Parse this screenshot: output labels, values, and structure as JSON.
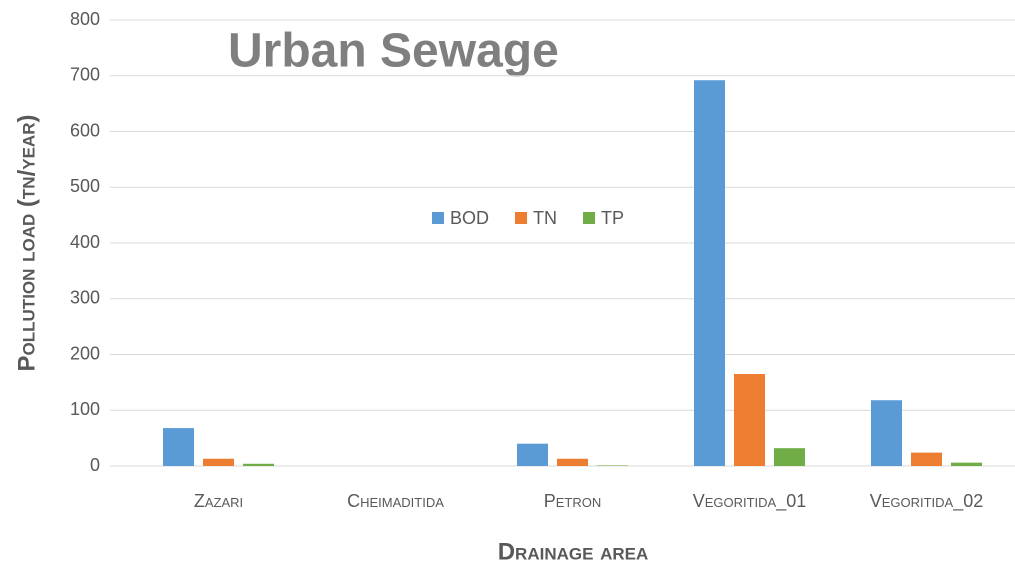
{
  "chart_data": {
    "type": "bar",
    "title": "Urban Sewage",
    "y_label": "Pollution load (tn/year)",
    "x_label": "Drainage area",
    "categories": [
      "Zazari",
      "Cheimaditida",
      "Petron",
      "Vegoritida_01",
      "Vegoritida_02"
    ],
    "series": [
      {
        "name": "BOD",
        "color": "#5b9bd5",
        "values": [
          68,
          0,
          40,
          692,
          118
        ]
      },
      {
        "name": "TN",
        "color": "#ed7d31",
        "values": [
          13,
          0,
          13,
          165,
          24
        ]
      },
      {
        "name": "TP",
        "color": "#70ad47",
        "values": [
          4,
          0,
          1,
          32,
          6
        ]
      }
    ],
    "ylim": [
      0,
      800
    ],
    "yticks": [
      0,
      100,
      200,
      300,
      400,
      500,
      600,
      700,
      800
    ],
    "grid": true,
    "legend": "center"
  }
}
